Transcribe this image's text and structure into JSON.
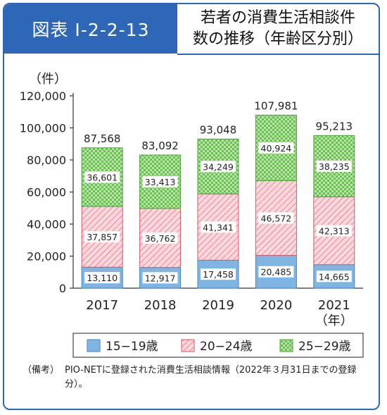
{
  "header": {
    "tag": "図表 I-2-2-13",
    "title_line1": "若者の消費生活相談件",
    "title_line2": "数の推移（年齢区分別）"
  },
  "chart_data": {
    "type": "bar",
    "stacked": true,
    "categories": [
      "2017",
      "2018",
      "2019",
      "2020",
      "2021"
    ],
    "series": [
      {
        "name": "15−19歳",
        "values": [
          13110,
          12917,
          17458,
          20485,
          14665
        ],
        "value_labels": [
          "13,110",
          "12,917",
          "17,458",
          "20,485",
          "14,665"
        ],
        "color": "#7fb4e3",
        "pattern": "solid"
      },
      {
        "name": "20−24歳",
        "values": [
          37857,
          36762,
          41341,
          46572,
          42313
        ],
        "value_labels": [
          "37,857",
          "36,762",
          "41,341",
          "46,572",
          "42,313"
        ],
        "color": "#f4a7b1",
        "pattern": "diagonal-hatch"
      },
      {
        "name": "25−29歳",
        "values": [
          36601,
          33413,
          34249,
          40924,
          38235
        ],
        "value_labels": [
          "36,601",
          "33,413",
          "34,249",
          "40,924",
          "38,235"
        ],
        "color": "#9fd58c",
        "pattern": "checker"
      }
    ],
    "totals": [
      "87,568",
      "83,092",
      "93,048",
      "107,981",
      "95,213"
    ],
    "ylabel": "（件）",
    "xlabel_suffix": "（年）",
    "ylim": [
      0,
      120000
    ],
    "yticks": [
      0,
      20000,
      40000,
      60000,
      80000,
      100000,
      120000
    ],
    "ytick_labels": [
      "0",
      "20,000",
      "40,000",
      "60,000",
      "80,000",
      "100,000",
      "120,000"
    ],
    "legend_position": "bottom"
  },
  "note": {
    "label": "（備考）",
    "text": "PIO-NETに登録された消費生活相談情報（2022年３月31日までの登録分）。"
  }
}
